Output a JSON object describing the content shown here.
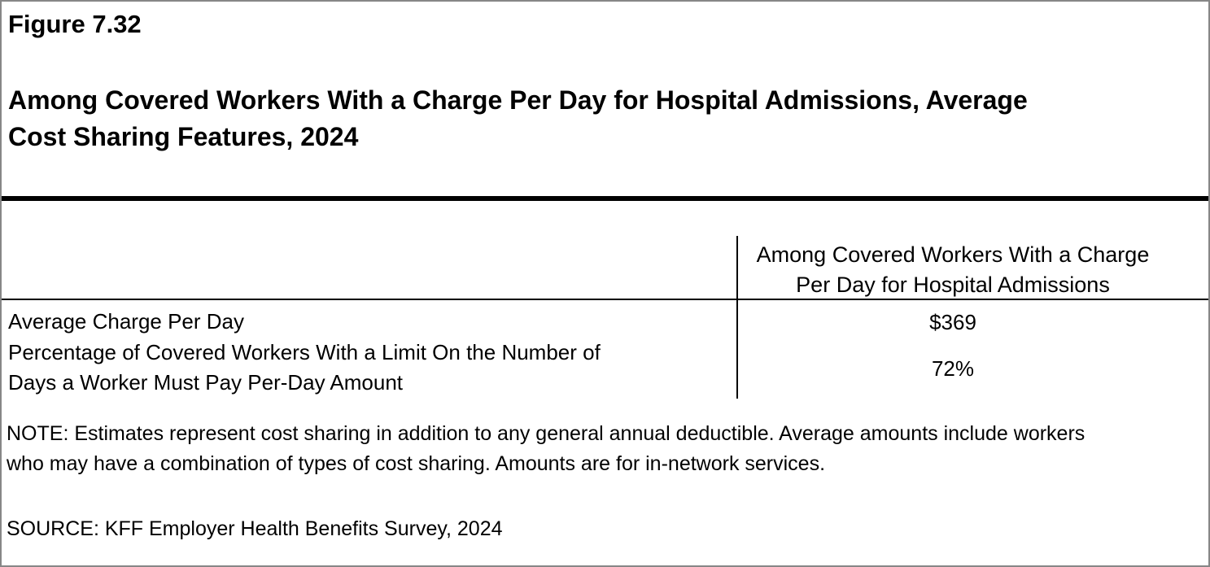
{
  "figure": {
    "number": "Figure 7.32",
    "title": "Among Covered Workers With a Charge Per Day for Hospital Admissions, Average\nCost Sharing Features, 2024"
  },
  "table": {
    "column_header": "Among Covered Workers With a Charge\nPer Day for Hospital Admissions",
    "rows": [
      {
        "label": "Average Charge Per Day",
        "value": "$369"
      },
      {
        "label": "Percentage of Covered Workers With a Limit On the Number of\nDays a Worker Must Pay Per-Day Amount",
        "value": "72%"
      }
    ]
  },
  "note": "NOTE: Estimates represent cost sharing in addition to any general annual deductible. Average amounts include workers\nwho may have a combination of types of cost sharing. Amounts are for in-network services.",
  "source": "SOURCE: KFF Employer Health Benefits Survey, 2024",
  "colors": {
    "text": "#000000",
    "rules": "#000000",
    "frame_border": "#878787",
    "background": "#ffffff"
  },
  "chart_data": {
    "type": "table",
    "title": "Among Covered Workers With a Charge Per Day for Hospital Admissions, Average Cost Sharing Features, 2024",
    "columns": [
      "",
      "Among Covered Workers With a Charge Per Day for Hospital Admissions"
    ],
    "rows": [
      [
        "Average Charge Per Day",
        "$369"
      ],
      [
        "Percentage of Covered Workers With a Limit On the Number of Days a Worker Must Pay Per-Day Amount",
        "72%"
      ]
    ]
  }
}
